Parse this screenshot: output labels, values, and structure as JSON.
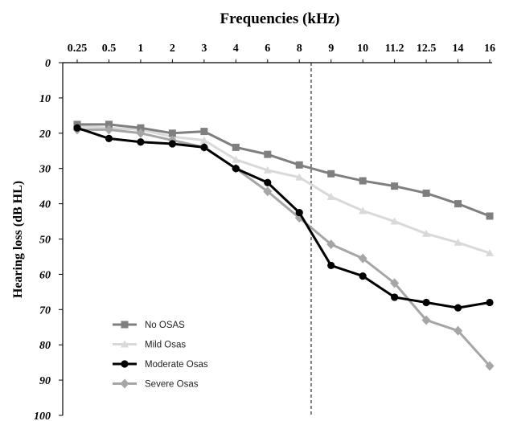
{
  "chart_data": {
    "type": "line",
    "title": "Frequencies (kHz)",
    "xlabel": "Frequencies (kHz)",
    "ylabel": "Hearing loss (dB HL)",
    "categories": [
      "0.25",
      "0.5",
      "1",
      "2",
      "3",
      "4",
      "6",
      "8",
      "9",
      "10",
      "11.2",
      "12.5",
      "14",
      "16"
    ],
    "yticks": [
      "0",
      "10",
      "20",
      "30",
      "40",
      "50",
      "60",
      "70",
      "80",
      "90",
      "100"
    ],
    "ylim": [
      0,
      100
    ],
    "y_inverted": true,
    "x_axis_position": "top",
    "grid": false,
    "legend_position": "bottom-left",
    "divider_after_category": "8",
    "series": [
      {
        "name": "No OSAS",
        "color": "#7f7f7f",
        "marker": "square",
        "values": [
          17.5,
          17.5,
          18.5,
          20,
          19.5,
          24,
          26,
          29,
          31.5,
          33.5,
          35,
          37,
          40,
          43.5
        ]
      },
      {
        "name": "Mild Osas",
        "color": "#d9d9d9",
        "marker": "triangle",
        "values": [
          18,
          18.5,
          19,
          21,
          22,
          27.5,
          30.5,
          32.5,
          38,
          42,
          45,
          48.5,
          51,
          54
        ]
      },
      {
        "name": "Moderate Osas",
        "color": "#000000",
        "marker": "circle",
        "values": [
          18.5,
          21.5,
          22.5,
          23,
          24,
          30,
          34,
          42.5,
          57.5,
          60.5,
          66.5,
          68,
          69.5,
          68
        ]
      },
      {
        "name": "Severe Osas",
        "color": "#a6a6a6",
        "marker": "diamond",
        "values": [
          19,
          19,
          20,
          22,
          24,
          30,
          36.5,
          44,
          51.5,
          55.5,
          62.5,
          73,
          76,
          86
        ]
      }
    ]
  }
}
